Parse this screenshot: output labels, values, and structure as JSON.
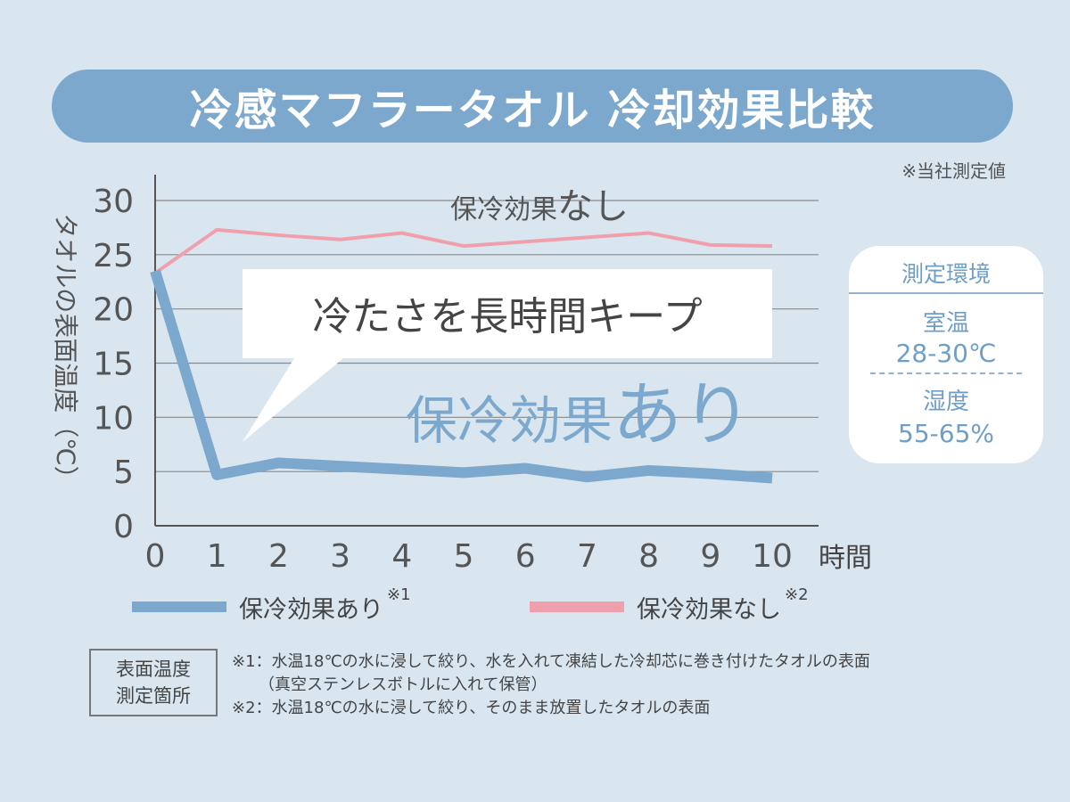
{
  "title": "冷感マフラータオル 冷却効果比較",
  "measure_note": "※当社測定値",
  "environment": {
    "title": "測定環境",
    "room_temp_label": "室温",
    "room_temp_value": "28-30℃",
    "humidity_label": "湿度",
    "humidity_value": "55-65%"
  },
  "chart_data": {
    "type": "line",
    "x": [
      0,
      1,
      2,
      3,
      4,
      5,
      6,
      7,
      8,
      9,
      10
    ],
    "x_tick_labels": [
      "0",
      "1",
      "2",
      "3",
      "4",
      "5",
      "6",
      "7",
      "8",
      "9",
      "10"
    ],
    "y_tick_labels": [
      "0",
      "5",
      "10",
      "15",
      "20",
      "25",
      "30"
    ],
    "xlabel": "時間",
    "ylabel": "タオルの表面温度（℃）",
    "xlim": [
      0,
      10
    ],
    "ylim": [
      0,
      30
    ],
    "grid": true,
    "legend_position": "bottom",
    "series": [
      {
        "name": "保冷効果あり",
        "note": "※1",
        "color": "#7ba8cc",
        "values": [
          23.5,
          4.7,
          5.8,
          5.5,
          5.2,
          4.9,
          5.3,
          4.5,
          5.1,
          4.8,
          4.4
        ]
      },
      {
        "name": "保冷効果なし",
        "note": "※2",
        "color": "#f0a0ac",
        "values": [
          23.3,
          27.3,
          26.8,
          26.4,
          27.0,
          25.8,
          26.2,
          26.6,
          27.0,
          25.9,
          25.8
        ]
      }
    ],
    "annotations": {
      "without_prefix": "保冷効果",
      "without_suffix": "なし",
      "callout": "冷たさを長時間キープ",
      "with_prefix": "保冷効果",
      "with_suffix": "あり"
    }
  },
  "footnote_box": {
    "line1": "表面温度",
    "line2": "測定箇所"
  },
  "footnotes": {
    "note1": "※1：水温18℃の水に浸して絞り、水を入れて凍結した冷却芯に巻き付けたタオルの表面",
    "note1_cont": "（真空ステンレスボトルに入れて保管）",
    "note2": "※2：水温18℃の水に浸して絞り、そのまま放置したタオルの表面"
  }
}
